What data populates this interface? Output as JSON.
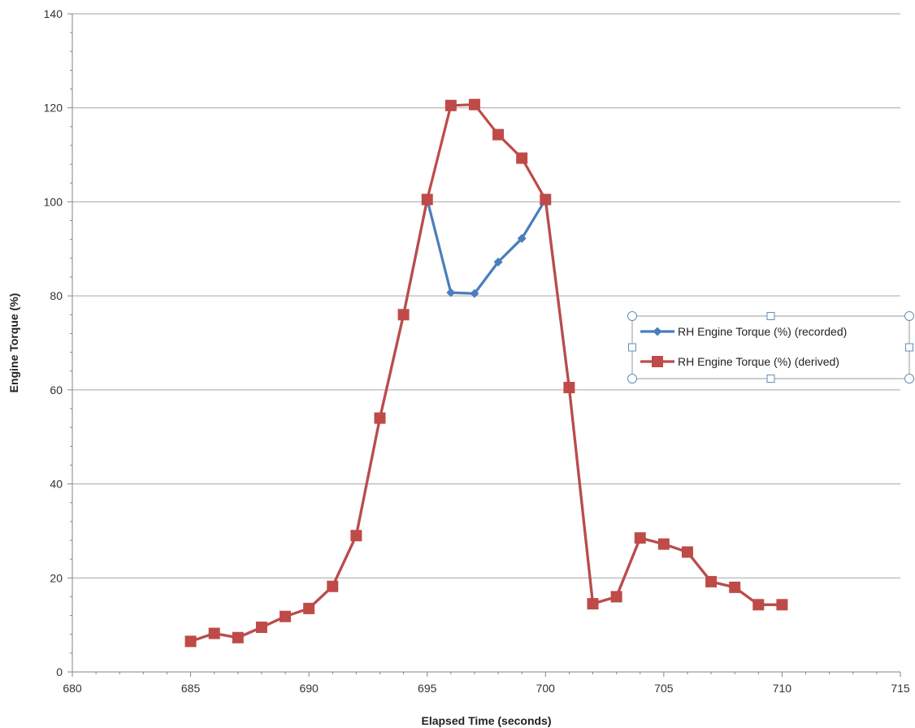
{
  "chart_data": {
    "type": "line",
    "title": "",
    "xlabel": "Elapsed Time (seconds)",
    "ylabel": "Engine Torque (%)",
    "xlim": [
      680,
      715
    ],
    "ylim": [
      0,
      140
    ],
    "x_ticks": [
      680,
      685,
      690,
      695,
      700,
      705,
      710,
      715
    ],
    "y_ticks": [
      0,
      20,
      40,
      60,
      80,
      100,
      120,
      140
    ],
    "grid": "horizontal major",
    "legend_position": "right",
    "series": [
      {
        "name": "RH Engine Torque (%) (recorded)",
        "color": "#4a7ebb",
        "marker": "diamond",
        "x": [
          685,
          686,
          687,
          688,
          689,
          690,
          691,
          692,
          693,
          694,
          695,
          696,
          697,
          698,
          699,
          700,
          701,
          702,
          703,
          704,
          705,
          706,
          707,
          708,
          709,
          710
        ],
        "y": [
          6.5,
          8.2,
          7.3,
          9.5,
          11.8,
          13.5,
          18.2,
          29,
          54,
          76,
          100.5,
          80.7,
          80.5,
          87.2,
          92.2,
          100.5,
          60.5,
          14.5,
          16,
          28.5,
          27.2,
          25.5,
          19.2,
          18,
          14.3,
          14.3
        ]
      },
      {
        "name": "RH Engine Torque (%) (derived)",
        "color": "#be4b48",
        "marker": "square",
        "x": [
          685,
          686,
          687,
          688,
          689,
          690,
          691,
          692,
          693,
          694,
          695,
          696,
          697,
          698,
          699,
          700,
          701,
          702,
          703,
          704,
          705,
          706,
          707,
          708,
          709,
          710
        ],
        "y": [
          6.5,
          8.2,
          7.3,
          9.5,
          11.8,
          13.5,
          18.2,
          29,
          54,
          76,
          100.5,
          120.5,
          120.7,
          114.3,
          109.3,
          100.5,
          60.5,
          14.5,
          16,
          28.5,
          27.2,
          25.5,
          19.2,
          18,
          14.3,
          14.3
        ]
      }
    ]
  }
}
